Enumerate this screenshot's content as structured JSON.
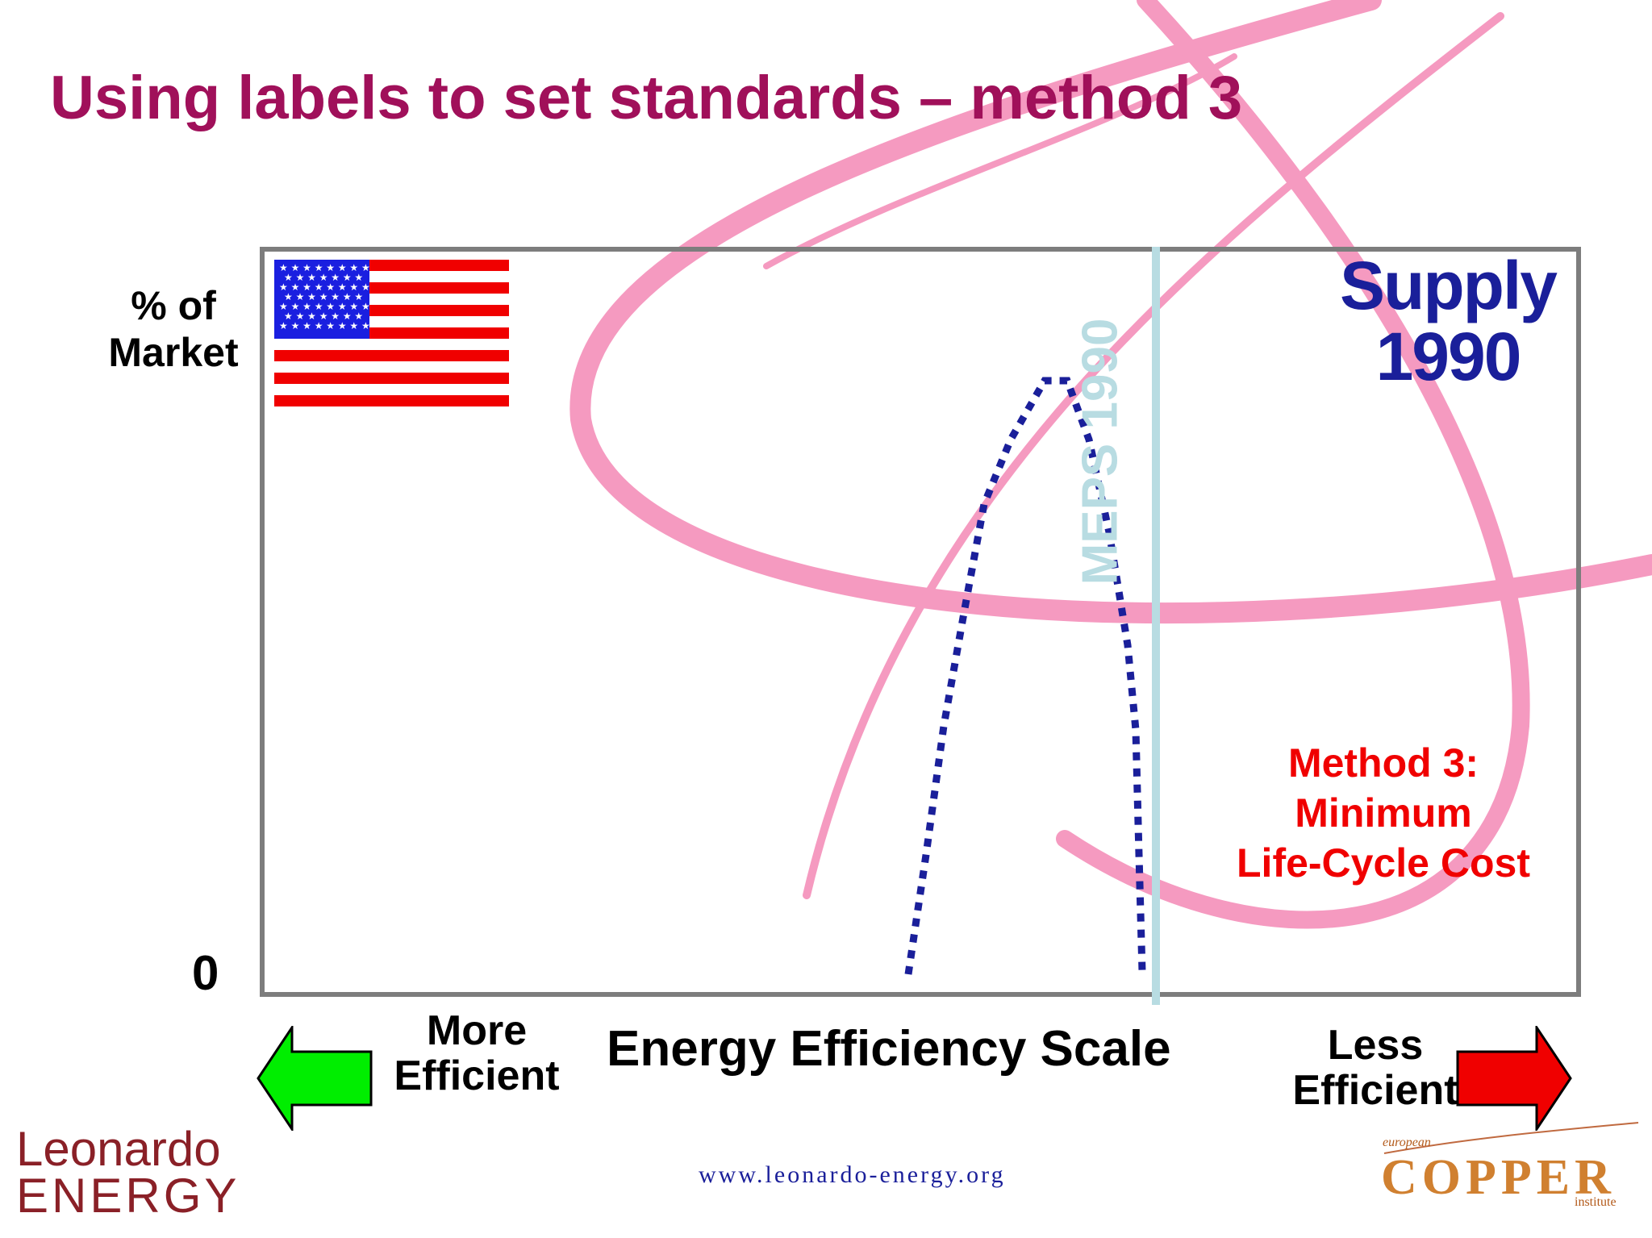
{
  "slide": {
    "title": "Using labels to set standards – method 3",
    "y_axis_label_line1": "% of",
    "y_axis_label_line2": "Market",
    "y_axis_zero": "0",
    "x_axis_label": "Energy Efficiency Scale",
    "more_efficient_line1": "More",
    "more_efficient_line2": "Efficient",
    "less_efficient_line1": "Less",
    "less_efficient_line2": "Efficient",
    "supply_title_line1": "Supply",
    "supply_title_line2": "1990",
    "meps_label": "MEPS 1990",
    "method_note_line1": "Method 3:",
    "method_note_line2": "Minimum",
    "method_note_line3": "Life-Cycle Cost",
    "footer_url": "www.leonardo-energy.org",
    "logo_left_line1": "Leonardo",
    "logo_left_line2": "ENERGY",
    "logo_right_small": "european",
    "logo_right_main": "COPPER",
    "logo_right_sub": "institute"
  },
  "colors": {
    "title": "#a0105a",
    "curve": "#1a1f9a",
    "meps_line": "#b8dce2",
    "method_note": "#f00000",
    "arrow_left": "#00ee00",
    "arrow_right": "#f00000",
    "ribbon": "#f59ac0"
  },
  "icons": {
    "flag": "us-flag-icon",
    "left_arrow": "left-arrow-icon",
    "right_arrow": "right-arrow-icon"
  }
}
